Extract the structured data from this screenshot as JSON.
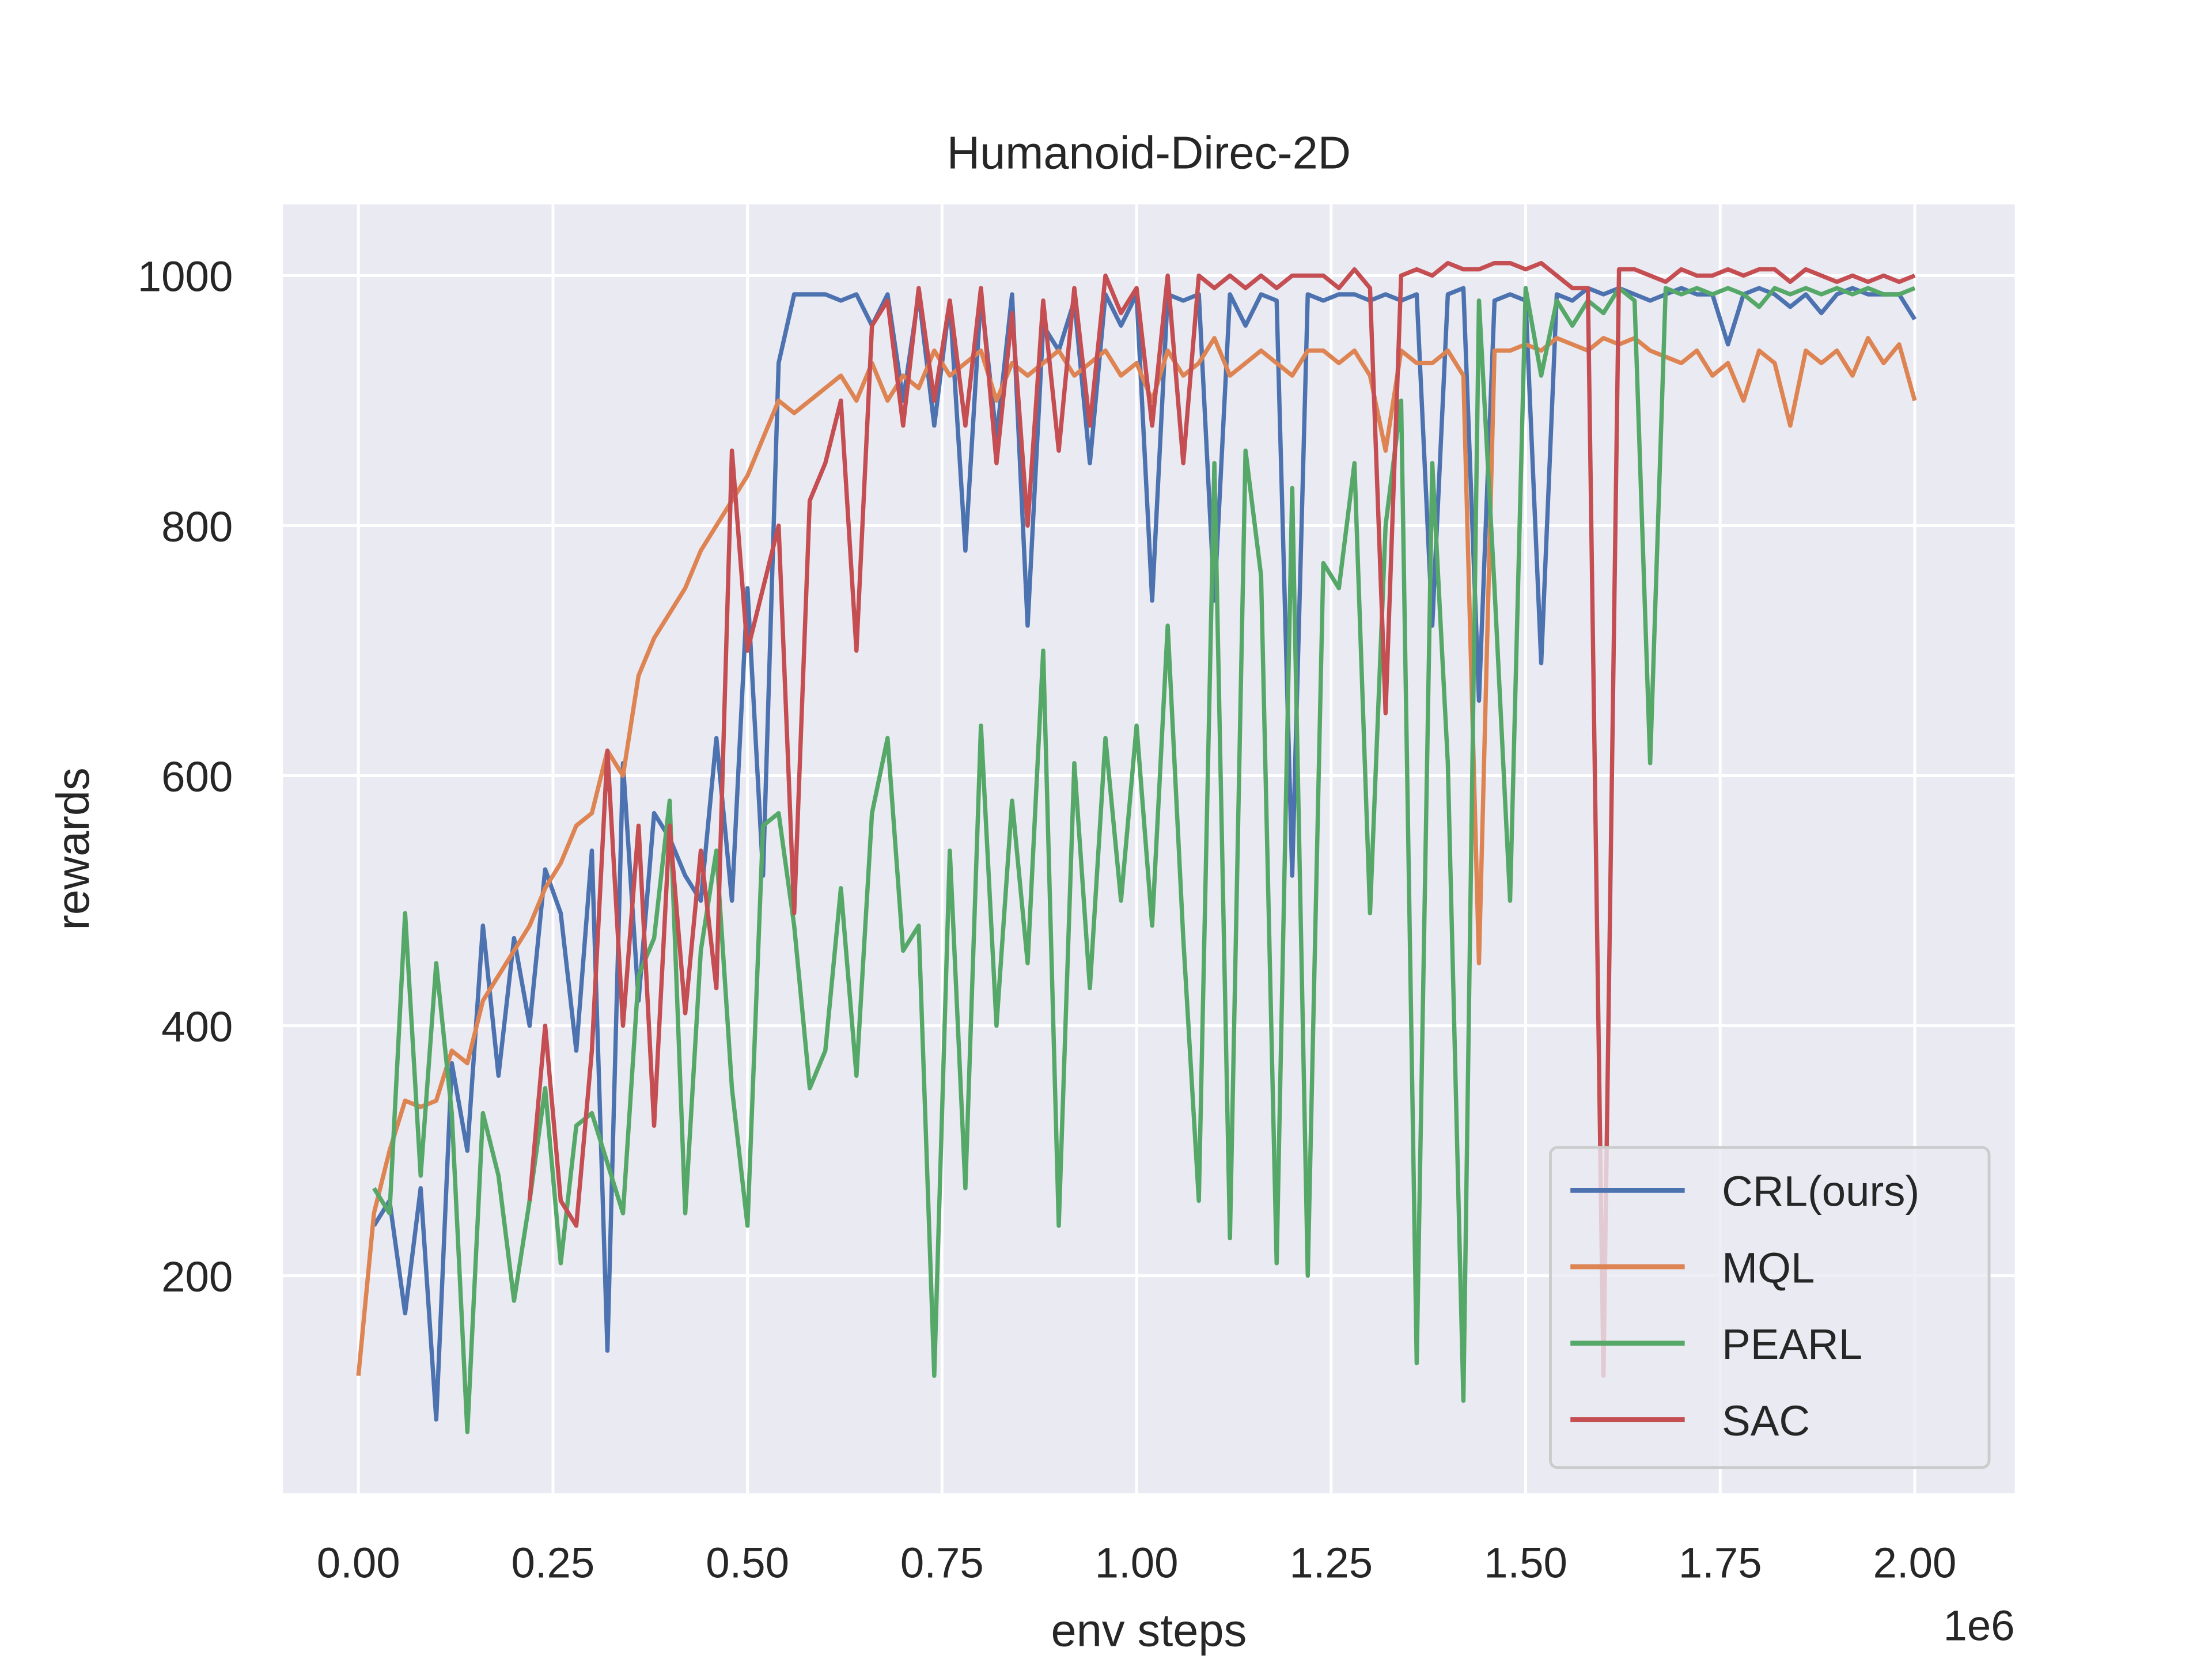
{
  "chart_data": {
    "type": "line",
    "title": "Humanoid-Direc-2D",
    "xlabel": "env steps",
    "ylabel": "rewards",
    "x_offset_label": "1e6",
    "x": [
      0,
      20000,
      40000,
      60000,
      80000,
      100000,
      120000,
      140000,
      160000,
      180000,
      200000,
      220000,
      240000,
      260000,
      280000,
      300000,
      320000,
      340000,
      360000,
      380000,
      400000,
      420000,
      440000,
      460000,
      480000,
      500000,
      520000,
      540000,
      560000,
      580000,
      600000,
      620000,
      640000,
      660000,
      680000,
      700000,
      720000,
      740000,
      760000,
      780000,
      800000,
      820000,
      840000,
      860000,
      880000,
      900000,
      920000,
      940000,
      960000,
      980000,
      1000000,
      1020000,
      1040000,
      1060000,
      1080000,
      1100000,
      1120000,
      1140000,
      1160000,
      1180000,
      1200000,
      1220000,
      1240000,
      1260000,
      1280000,
      1300000,
      1320000,
      1340000,
      1360000,
      1380000,
      1400000,
      1420000,
      1440000,
      1460000,
      1480000,
      1500000,
      1520000,
      1540000,
      1560000,
      1580000,
      1600000,
      1620000,
      1640000,
      1660000,
      1680000,
      1700000,
      1720000,
      1740000,
      1760000,
      1780000,
      1800000,
      1820000,
      1840000,
      1860000,
      1880000,
      1900000,
      1920000,
      1940000,
      1960000,
      1980000,
      2000000
    ],
    "series": [
      {
        "name": "CRL(ours)",
        "color": "#4c72b0",
        "values": [
          null,
          240,
          260,
          170,
          270,
          85,
          370,
          300,
          480,
          360,
          470,
          400,
          525,
          490,
          380,
          540,
          140,
          610,
          420,
          570,
          550,
          520,
          500,
          630,
          500,
          750,
          520,
          930,
          985,
          985,
          985,
          980,
          985,
          960,
          985,
          900,
          985,
          880,
          980,
          780,
          985,
          870,
          985,
          720,
          960,
          940,
          980,
          850,
          985,
          960,
          985,
          740,
          985,
          980,
          985,
          740,
          985,
          960,
          985,
          980,
          520,
          985,
          980,
          985,
          985,
          980,
          985,
          980,
          985,
          720,
          985,
          990,
          660,
          980,
          985,
          980,
          690,
          985,
          980,
          990,
          985,
          990,
          985,
          980,
          985,
          990,
          985,
          985,
          945,
          985,
          990,
          985,
          975,
          985,
          970,
          985,
          990,
          985,
          985,
          985,
          965
        ]
      },
      {
        "name": "MQL",
        "color": "#dd8452",
        "values": [
          120,
          250,
          300,
          340,
          335,
          340,
          380,
          370,
          420,
          440,
          460,
          480,
          510,
          530,
          560,
          570,
          620,
          600,
          680,
          710,
          730,
          750,
          780,
          800,
          820,
          840,
          870,
          900,
          890,
          900,
          910,
          920,
          900,
          930,
          900,
          920,
          910,
          940,
          920,
          930,
          940,
          900,
          930,
          920,
          930,
          940,
          920,
          930,
          940,
          920,
          930,
          900,
          940,
          920,
          930,
          950,
          920,
          930,
          940,
          930,
          920,
          940,
          940,
          930,
          940,
          920,
          860,
          940,
          930,
          930,
          940,
          920,
          450,
          940,
          940,
          945,
          940,
          950,
          945,
          940,
          950,
          945,
          950,
          940,
          935,
          930,
          940,
          920,
          930,
          900,
          940,
          930,
          880,
          940,
          930,
          940,
          920,
          950,
          930,
          945,
          900
        ]
      },
      {
        "name": "PEARL",
        "color": "#55a868",
        "values": [
          null,
          270,
          250,
          490,
          280,
          450,
          330,
          75,
          330,
          280,
          180,
          260,
          350,
          210,
          320,
          330,
          290,
          250,
          440,
          470,
          580,
          250,
          460,
          540,
          350,
          240,
          560,
          570,
          480,
          350,
          380,
          510,
          360,
          570,
          630,
          460,
          480,
          120,
          540,
          270,
          640,
          400,
          580,
          450,
          700,
          240,
          610,
          430,
          630,
          500,
          640,
          480,
          720,
          470,
          260,
          850,
          230,
          860,
          760,
          210,
          830,
          200,
          770,
          750,
          850,
          490,
          800,
          900,
          130,
          850,
          610,
          100,
          980,
          750,
          500,
          990,
          920,
          980,
          960,
          980,
          970,
          990,
          980,
          610,
          990,
          985,
          990,
          985,
          990,
          985,
          975,
          990,
          985,
          990,
          985,
          990,
          985,
          990,
          985,
          985,
          990
        ]
      },
      {
        "name": "SAC",
        "color": "#c44e52",
        "values": [
          null,
          null,
          null,
          null,
          null,
          null,
          null,
          null,
          null,
          null,
          null,
          260,
          400,
          260,
          240,
          380,
          620,
          400,
          560,
          320,
          560,
          410,
          540,
          430,
          860,
          700,
          750,
          800,
          490,
          820,
          850,
          900,
          700,
          960,
          980,
          880,
          990,
          900,
          980,
          880,
          990,
          850,
          970,
          800,
          980,
          860,
          990,
          880,
          1000,
          970,
          990,
          880,
          1000,
          850,
          1000,
          990,
          1000,
          990,
          1000,
          990,
          1000,
          1000,
          1000,
          990,
          1005,
          990,
          650,
          1000,
          1005,
          1000,
          1010,
          1005,
          1005,
          1010,
          1010,
          1005,
          1010,
          1000,
          990,
          990,
          120,
          1005,
          1005,
          1000,
          995,
          1005,
          1000,
          1000,
          1005,
          1000,
          1005,
          1005,
          995,
          1005,
          1000,
          995,
          1000,
          995,
          1000,
          995,
          1000
        ]
      }
    ],
    "xlim": [
      -97000,
      2128600
    ],
    "ylim": [
      26,
      1057
    ],
    "xticks": [
      {
        "value": 0,
        "label": "0.00"
      },
      {
        "value": 250000,
        "label": "0.25"
      },
      {
        "value": 500000,
        "label": "0.50"
      },
      {
        "value": 750000,
        "label": "0.75"
      },
      {
        "value": 1000000,
        "label": "1.00"
      },
      {
        "value": 1250000,
        "label": "1.25"
      },
      {
        "value": 1500000,
        "label": "1.50"
      },
      {
        "value": 1750000,
        "label": "1.75"
      },
      {
        "value": 2000000,
        "label": "2.00"
      }
    ],
    "yticks": [
      200,
      400,
      600,
      800,
      1000
    ],
    "grid": true,
    "legend": "lower right"
  }
}
